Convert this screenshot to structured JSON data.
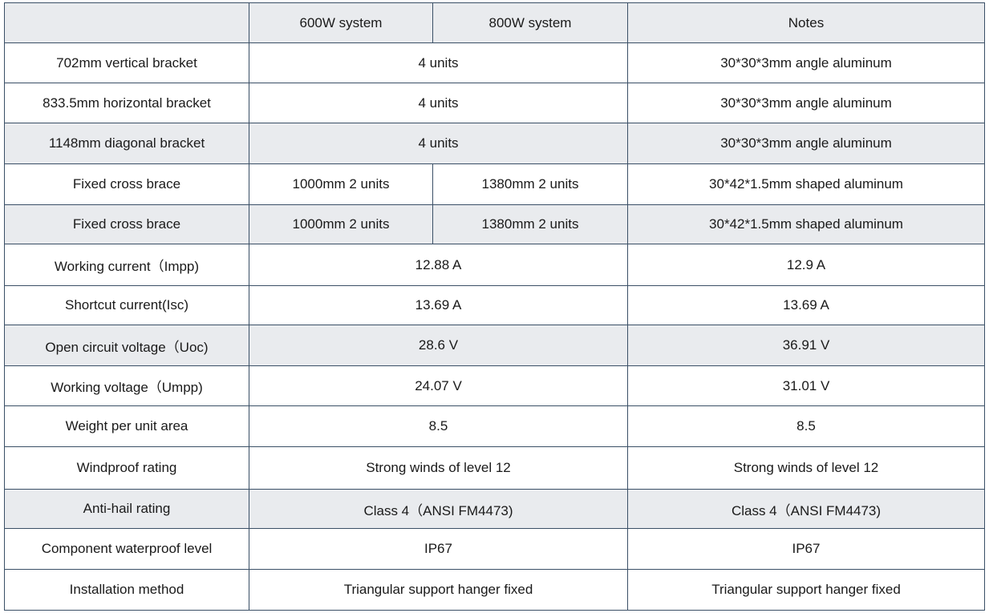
{
  "table": {
    "header": {
      "corner": "",
      "col_600w": "600W system",
      "col_800w": "800W system",
      "col_notes": "Notes"
    },
    "rows": [
      {
        "label": "702mm vertical bracket",
        "value": "4 units",
        "notes": "30*30*3mm angle aluminum"
      },
      {
        "label": "833.5mm horizontal bracket",
        "value": "4 units",
        "notes": "30*30*3mm angle aluminum"
      },
      {
        "label": "1148mm diagonal bracket",
        "value": "4 units",
        "notes": "30*30*3mm angle aluminum"
      },
      {
        "label": "Fixed cross brace",
        "value_600w": "1000mm 2 units",
        "value_800w": "1380mm 2 units",
        "notes": "30*42*1.5mm shaped aluminum"
      },
      {
        "label": "Fixed cross brace",
        "value_600w": "1000mm 2 units",
        "value_800w": "1380mm 2 units",
        "notes": "30*42*1.5mm shaped aluminum"
      },
      {
        "label": "Working current（Impp)",
        "value": "12.88 A",
        "notes": "12.9 A"
      },
      {
        "label": "Shortcut current(Isc)",
        "value": "13.69 A",
        "notes": "13.69 A"
      },
      {
        "label": "Open circuit voltage（Uoc)",
        "value": "28.6 V",
        "notes": "36.91 V"
      },
      {
        "label": "Working voltage（Umpp)",
        "value": "24.07 V",
        "notes": "31.01 V"
      },
      {
        "label": "Weight per unit area",
        "value": "8.5",
        "notes": "8.5"
      },
      {
        "label": "Windproof rating",
        "value": "Strong winds of level 12",
        "notes": "Strong winds of level 12"
      },
      {
        "label": "Anti-hail rating",
        "value": "Class 4（ANSI FM4473)",
        "notes": "Class 4（ANSI FM4473)"
      },
      {
        "label": "Component waterproof level",
        "value": "IP67",
        "notes": "IP67"
      },
      {
        "label": "Installation method",
        "value": "Triangular support hanger fixed",
        "notes": "Triangular support hanger fixed"
      }
    ]
  }
}
